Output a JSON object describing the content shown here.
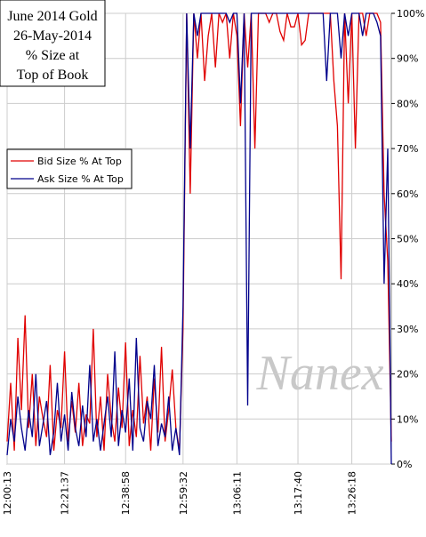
{
  "chart_data": {
    "type": "line",
    "title": [
      "June 2014 Gold",
      "26-May-2014",
      "% Size at",
      "Top of Book"
    ],
    "watermark": "Nanex",
    "categories": [
      "12:00:13",
      null,
      null,
      null,
      null,
      null,
      null,
      null,
      null,
      null,
      null,
      null,
      null,
      null,
      null,
      null,
      "12:21:37",
      null,
      null,
      null,
      null,
      null,
      null,
      null,
      null,
      null,
      null,
      null,
      null,
      null,
      null,
      null,
      null,
      "12:38:58",
      null,
      null,
      null,
      null,
      null,
      null,
      null,
      null,
      null,
      null,
      null,
      null,
      null,
      null,
      null,
      "12:59:32",
      null,
      null,
      null,
      null,
      null,
      null,
      null,
      null,
      null,
      null,
      null,
      null,
      null,
      null,
      "13:06:11",
      null,
      null,
      null,
      null,
      null,
      null,
      null,
      null,
      null,
      null,
      null,
      null,
      null,
      null,
      null,
      null,
      "13:17:40",
      null,
      null,
      null,
      null,
      null,
      null,
      null,
      null,
      null,
      null,
      null,
      null,
      null,
      null,
      "13:26:18",
      null,
      null,
      null,
      null,
      null,
      null,
      null,
      null,
      null,
      null,
      null
    ],
    "series": [
      {
        "name": "Bid Size % At Top",
        "color": "#e00000",
        "values": [
          5,
          18,
          3,
          28,
          12,
          33,
          8,
          20,
          4,
          15,
          10,
          6,
          22,
          3,
          12,
          8,
          25,
          5,
          14,
          7,
          18,
          4,
          11,
          9,
          30,
          6,
          15,
          3,
          20,
          10,
          5,
          17,
          8,
          27,
          4,
          12,
          6,
          24,
          9,
          15,
          3,
          19,
          7,
          26,
          5,
          12,
          21,
          8,
          3,
          30,
          100,
          60,
          100,
          90,
          100,
          85,
          95,
          100,
          88,
          100,
          98,
          100,
          90,
          100,
          95,
          75,
          100,
          88,
          100,
          70,
          100,
          100,
          100,
          98,
          100,
          100,
          96,
          94,
          100,
          97,
          97,
          100,
          93,
          94,
          100,
          100,
          100,
          100,
          100,
          100,
          100,
          85,
          75,
          41,
          100,
          80,
          100,
          70,
          100,
          100,
          95,
          100,
          100,
          100,
          98,
          60,
          45,
          5
        ]
      },
      {
        "name": "Ask Size % At Top",
        "color": "#00008b",
        "values": [
          2,
          10,
          5,
          15,
          8,
          3,
          12,
          6,
          20,
          4,
          9,
          14,
          2,
          7,
          18,
          5,
          11,
          3,
          16,
          8,
          4,
          13,
          6,
          22,
          5,
          10,
          3,
          9,
          15,
          6,
          25,
          4,
          12,
          7,
          19,
          3,
          28,
          8,
          5,
          14,
          10,
          22,
          4,
          9,
          6,
          15,
          3,
          8,
          2,
          35,
          100,
          70,
          100,
          95,
          100,
          100,
          100,
          100,
          100,
          100,
          100,
          100,
          98,
          100,
          100,
          80,
          100,
          13,
          100,
          100,
          100,
          100,
          100,
          100,
          100,
          100,
          100,
          100,
          100,
          100,
          100,
          100,
          100,
          100,
          100,
          100,
          100,
          100,
          100,
          85,
          100,
          100,
          100,
          90,
          100,
          95,
          100,
          100,
          100,
          95,
          100,
          100,
          100,
          98,
          95,
          40,
          70,
          0
        ]
      }
    ],
    "ylim": [
      0,
      100
    ],
    "yticks": [
      {
        "value": 0,
        "label": "0%"
      },
      {
        "value": 10,
        "label": "10%"
      },
      {
        "value": 20,
        "label": "20%"
      },
      {
        "value": 30,
        "label": "30%"
      },
      {
        "value": 40,
        "label": "40%"
      },
      {
        "value": 50,
        "label": "50%"
      },
      {
        "value": 60,
        "label": "60%"
      },
      {
        "value": 70,
        "label": "70%"
      },
      {
        "value": 80,
        "label": "80%"
      },
      {
        "value": 90,
        "label": "90%"
      },
      {
        "value": 100,
        "label": "100%"
      }
    ],
    "grid": true,
    "legend": "left"
  }
}
